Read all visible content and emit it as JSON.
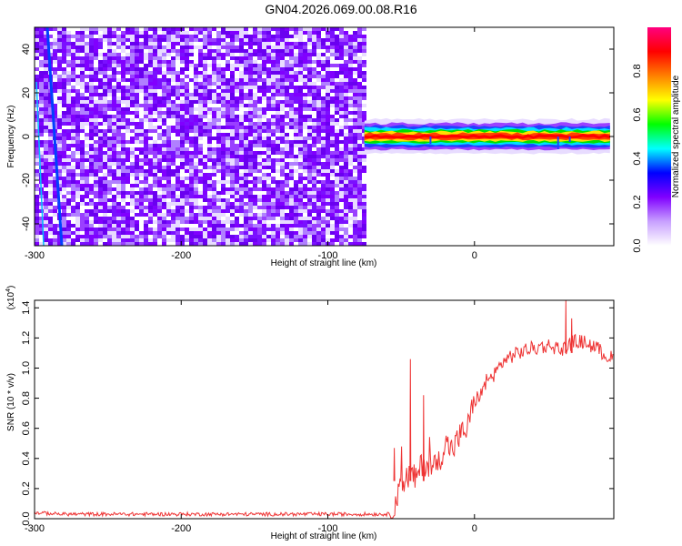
{
  "title": "GN04.2026.069.00.08.R16",
  "chart_data": [
    {
      "type": "heatmap",
      "name": "spectrogram",
      "xlabel": "Height of straight line (km)",
      "ylabel": "Frequency (Hz)",
      "xlim": [
        -300,
        95
      ],
      "ylim": [
        -50,
        50
      ],
      "xticks": [
        -300,
        -200,
        -100,
        0
      ],
      "yticks": [
        -40,
        -20,
        0,
        20,
        40
      ],
      "noise_region": {
        "x_range": [
          -300,
          -75
        ],
        "description": "broadband low-amplitude noise over full frequency range"
      },
      "signal_band": {
        "x_range": [
          -75,
          95
        ],
        "center_frequency": 0,
        "approx_width_hz": 6,
        "peak_amplitude": 0.95
      },
      "colorbar": {
        "label": "Normalized spectral amplitude",
        "ticks": [
          0.0,
          0.2,
          0.4,
          0.6,
          0.8
        ],
        "range": [
          0.0,
          1.0
        ],
        "colors": [
          "#ffffff",
          "#c8a0ff",
          "#8000ff",
          "#0000ff",
          "#00ffff",
          "#00ff00",
          "#ffff00",
          "#ff8000",
          "#ff0000",
          "#ff0080"
        ]
      }
    },
    {
      "type": "line",
      "name": "snr",
      "xlabel": "Height of straight line (km)",
      "ylabel": "SNR (10 * v/v)",
      "y_multiplier": "(x10",
      "y_multiplier_exp": "4",
      "y_multiplier_close": ")",
      "xlim": [
        -300,
        95
      ],
      "ylim": [
        0.0,
        1.45
      ],
      "xticks": [
        -300,
        -200,
        -100,
        0
      ],
      "yticks": [
        0.0,
        0.2,
        0.4,
        0.6,
        0.8,
        1.0,
        1.2,
        1.4
      ],
      "ytick_labels": [
        "0.0",
        "0.2",
        "0.4",
        "0.6",
        "0.8",
        "1.0",
        "1.2",
        "1.4"
      ],
      "color": "#ee3333",
      "series": [
        {
          "x": [
            -300,
            -280,
            -250,
            -200,
            -150,
            -100,
            -70,
            -57,
            -55,
            -52,
            -48,
            -44,
            -40,
            -35,
            -30,
            -25,
            -20,
            -15,
            -10,
            -5,
            0,
            5,
            10,
            15,
            20,
            25,
            30,
            35,
            40,
            45,
            50,
            55,
            60,
            65,
            70,
            75,
            80,
            85,
            90,
            95
          ],
          "y": [
            0.04,
            0.03,
            0.03,
            0.03,
            0.03,
            0.03,
            0.03,
            0.03,
            0.1,
            0.15,
            0.24,
            0.3,
            0.26,
            0.38,
            0.34,
            0.36,
            0.5,
            0.46,
            0.55,
            0.6,
            0.78,
            0.84,
            0.92,
            0.98,
            1.05,
            1.08,
            1.1,
            1.12,
            1.13,
            1.14,
            1.15,
            1.14,
            1.12,
            1.16,
            1.18,
            1.17,
            1.15,
            1.12,
            1.08,
            1.06
          ]
        }
      ]
    }
  ]
}
